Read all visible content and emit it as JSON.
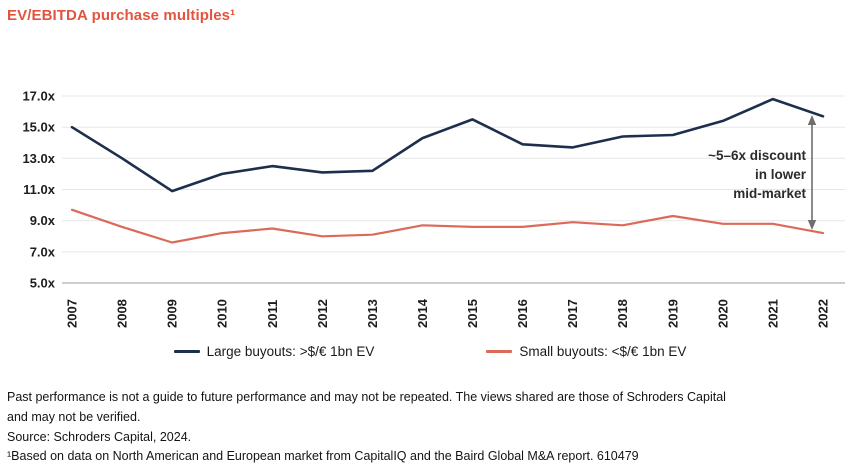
{
  "title": "EV/EBITDA purchase multiples¹",
  "colors": {
    "title": "#e3543f",
    "large_buyouts_line": "#1e2e4d",
    "small_buyouts_line": "#dc6a58",
    "grid_line": "#e7e7e7",
    "axis_line": "#bdbdbd",
    "arrow": "#6e6e6e",
    "tick_text": "#1d1d1d"
  },
  "footnotes": {
    "disclaimer": "Past performance is not a guide to future performance and may not be repeated. The views shared are those of Schroders Capital\nand may not be verified.",
    "source": "Source: Schroders Capital, 2024.",
    "note": "¹Based on data on North American and European market from CapitalIQ and the Baird Global M&A report. 610479"
  },
  "chart_data": {
    "type": "line",
    "title": "EV/EBITDA purchase multiples¹",
    "x": [
      "2007",
      "2008",
      "2009",
      "2010",
      "2011",
      "2012",
      "2013",
      "2014",
      "2015",
      "2016",
      "2017",
      "2018",
      "2019",
      "2020",
      "2021",
      "2022"
    ],
    "series": [
      {
        "name": "Large buyouts: >$/€ 1bn EV",
        "color": "#1e2e4d",
        "values": [
          15.0,
          13.0,
          10.9,
          12.0,
          12.5,
          12.1,
          12.2,
          14.3,
          15.5,
          13.9,
          13.7,
          14.4,
          14.5,
          15.4,
          16.8,
          15.7
        ]
      },
      {
        "name": "Small buyouts: <$/€ 1bn EV",
        "color": "#dc6a58",
        "values": [
          9.7,
          8.6,
          7.6,
          8.2,
          8.5,
          8.0,
          8.1,
          8.7,
          8.6,
          8.6,
          8.9,
          8.7,
          9.3,
          8.8,
          8.8,
          8.2
        ]
      }
    ],
    "ylim": [
      5,
      17
    ],
    "yticks": [
      5,
      7,
      9,
      11,
      13,
      15,
      17
    ],
    "ytick_labels": [
      "5.0x",
      "7.0x",
      "9.0x",
      "11.0x",
      "13.0x",
      "15.0x",
      "17.0x"
    ],
    "xlabel": "",
    "ylabel": "",
    "grid": true,
    "legend_position": "bottom",
    "annotation": "~5–6x discount\nin lower\nmid-market"
  }
}
